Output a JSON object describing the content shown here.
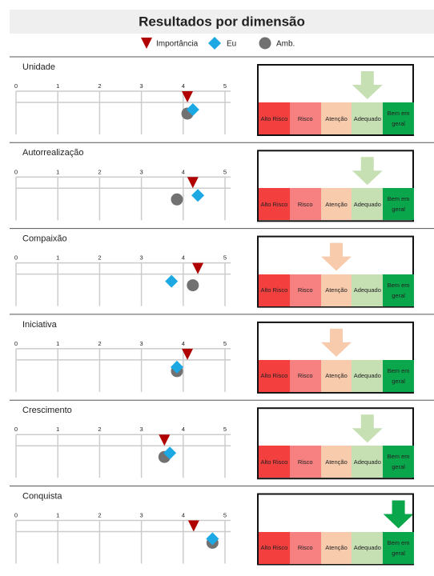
{
  "title": "Resultados por dimensão",
  "legend": {
    "importancia": "Importância",
    "eu": "Eu",
    "amb": "Amb."
  },
  "xlim": [
    0,
    5
  ],
  "xticks": [
    0,
    1,
    2,
    3,
    4,
    5
  ],
  "scale": {
    "labels": [
      "Alto Risco",
      "Risco",
      "Atenção",
      "Adequado",
      "Bem em geral"
    ],
    "colors": [
      "#f43f3f",
      "#f78080",
      "#f8cbad",
      "#c6e0b4",
      "#0aa64b"
    ]
  },
  "marker_colors": {
    "importancia": "#b00000",
    "eu": "#1ca8e3",
    "amb": "#717171"
  },
  "dimensions": [
    {
      "name": "Unidade",
      "importancia": 4.1,
      "eu": 4.23,
      "amb": 4.1,
      "level": 3
    },
    {
      "name": "Autorrealização",
      "importancia": 4.23,
      "eu": 4.35,
      "amb": 3.85,
      "level": 3
    },
    {
      "name": "Compaixão",
      "importancia": 4.35,
      "eu": 3.72,
      "amb": 4.23,
      "level": 2
    },
    {
      "name": "Iniciativa",
      "importancia": 4.1,
      "eu": 3.85,
      "amb": 3.85,
      "level": 2
    },
    {
      "name": "Crescimento",
      "importancia": 3.55,
      "eu": 3.68,
      "amb": 3.55,
      "level": 3
    },
    {
      "name": "Conquista",
      "importancia": 4.25,
      "eu": 4.7,
      "amb": 4.7,
      "level": 4
    }
  ]
}
